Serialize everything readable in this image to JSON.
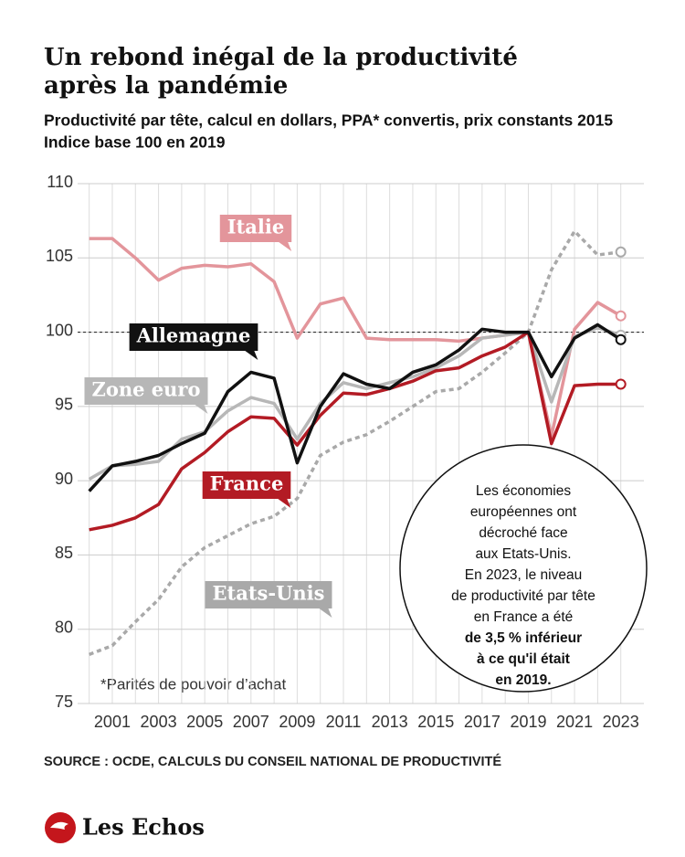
{
  "chart_data": {
    "type": "line",
    "title": [
      "Un rebond inégal de la productivité",
      "après la pandémie"
    ],
    "subtitle": [
      "Productivité par tête, calcul en dollars, PPA* convertis, prix constants 2015",
      "Indice base 100 en 2019"
    ],
    "x": [
      2000,
      2001,
      2002,
      2003,
      2004,
      2005,
      2006,
      2007,
      2008,
      2009,
      2010,
      2011,
      2012,
      2013,
      2014,
      2015,
      2016,
      2017,
      2018,
      2019,
      2020,
      2021,
      2022,
      2023
    ],
    "xlim": [
      1999.5,
      2024
    ],
    "xticks": [
      2001,
      2003,
      2005,
      2007,
      2009,
      2011,
      2013,
      2015,
      2017,
      2019,
      2021,
      2023
    ],
    "ylim": [
      75,
      110
    ],
    "yticks": [
      75,
      80,
      85,
      90,
      95,
      100,
      105,
      110
    ],
    "grid": true,
    "hline": 100,
    "series": [
      {
        "name": "Etats-Unis",
        "color": "#a9a9a9",
        "dashed": true,
        "values": [
          78.3,
          78.9,
          80.5,
          82,
          84.2,
          85.5,
          86.3,
          87.1,
          87.6,
          88.8,
          91.7,
          92.6,
          93.1,
          94,
          95,
          96,
          96.2,
          97.3,
          98.6,
          100,
          104.2,
          106.8,
          105.2,
          105.4
        ]
      },
      {
        "name": "Italie",
        "color": "#e3959b",
        "values": [
          106.3,
          106.3,
          105,
          103.5,
          104.3,
          104.5,
          104.4,
          104.6,
          103.4,
          99.6,
          101.9,
          102.3,
          99.6,
          99.5,
          99.5,
          99.5,
          99.4,
          99.6,
          99.8,
          100,
          93,
          100.2,
          102,
          101.1
        ]
      },
      {
        "name": "Zone euro",
        "color": "#b7b7b7",
        "values": [
          90.1,
          91,
          91.1,
          91.3,
          92.8,
          93.3,
          94.7,
          95.6,
          95.2,
          92.8,
          95.2,
          96.6,
          96.2,
          96.6,
          97,
          97.6,
          98.4,
          99.6,
          99.8,
          100,
          95.3,
          99.7,
          100.3,
          99.8
        ]
      },
      {
        "name": "France",
        "color": "#b31b24",
        "values": [
          86.7,
          87,
          87.5,
          88.4,
          90.8,
          91.9,
          93.3,
          94.3,
          94.2,
          92.4,
          94.4,
          95.9,
          95.8,
          96.2,
          96.7,
          97.4,
          97.6,
          98.4,
          99,
          100,
          92.5,
          96.4,
          96.5,
          96.5
        ]
      },
      {
        "name": "Allemagne",
        "color": "#111111",
        "values": [
          89.3,
          91,
          91.3,
          91.7,
          92.5,
          93.2,
          96,
          97.3,
          96.9,
          91.2,
          95,
          97.2,
          96.5,
          96.2,
          97.3,
          97.8,
          98.8,
          100.2,
          100,
          100,
          97,
          99.6,
          100.5,
          99.5
        ]
      }
    ],
    "note": "*Parités de pouvoir d’achat",
    "annotation": [
      "Les économies",
      "européennes ont",
      "décroché face",
      "aux Etats-Unis.",
      "En 2023, le niveau",
      "de productivité par tête",
      "en France a été"
    ],
    "annotation_bold": [
      "de 3,5 % inférieur",
      "à ce qu'il était",
      "en 2019."
    ],
    "source": "SOURCE : OCDE, CALCULS DU CONSEIL NATIONAL DE PRODUCTIVITÉ",
    "brand": "Les Echos"
  }
}
